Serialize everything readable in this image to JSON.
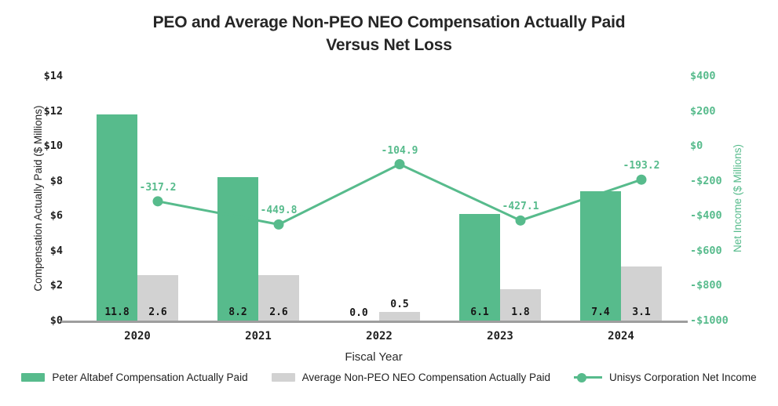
{
  "header": {
    "title_line1": "PEO and Average Non-PEO NEO Compensation Actually Paid",
    "title_line2": "Versus Net Loss"
  },
  "colors": {
    "green": "#57BB8C",
    "gray_bar": "#D2D2D2",
    "axis_line": "#9E9E9E",
    "text_dark": "#1F1F1F"
  },
  "chart_data": {
    "type": "bar",
    "title": "PEO and Average Non-PEO NEO Compensation Actually Paid Versus Net Loss",
    "categories": [
      "2020",
      "2021",
      "2022",
      "2023",
      "2024"
    ],
    "xlabel": "Fiscal Year",
    "grid": false,
    "legend_position": "bottom",
    "left_axis": {
      "label": "Compensation Actually Paid ($ Millions)",
      "ticks": [
        "$14",
        "$12",
        "$10",
        "$8",
        "$6",
        "$4",
        "$2",
        "$0"
      ],
      "range": [
        0,
        14
      ]
    },
    "right_axis": {
      "label": "Net Income ($ Millions)",
      "ticks": [
        "$400",
        "$200",
        "$0",
        "-$200",
        "-$400",
        "-$600",
        "-$800",
        "-$1000"
      ],
      "range": [
        -1000,
        400
      ]
    },
    "series": [
      {
        "key": "peo",
        "name": "Peter Altabef Compensation Actually Paid",
        "type": "bar",
        "color": "#57BB8C",
        "values": [
          11.8,
          8.2,
          0.0,
          6.1,
          7.4
        ],
        "labels": [
          "11.8",
          "8.2",
          "0.0",
          "6.1",
          "7.4"
        ]
      },
      {
        "key": "neo",
        "name": "Average Non-PEO NEO Compensation Actually Paid",
        "type": "bar",
        "color": "#D2D2D2",
        "values": [
          2.6,
          2.6,
          0.5,
          1.8,
          3.1
        ],
        "labels": [
          "2.6",
          "2.6",
          "0.5",
          "1.8",
          "3.1"
        ]
      },
      {
        "key": "net_income",
        "name": "Unisys Corporation Net Income",
        "type": "line",
        "color": "#57BB8C",
        "values": [
          -317.2,
          -449.8,
          -104.9,
          -427.1,
          -193.2
        ],
        "labels": [
          "-317.2",
          "-449.8",
          "-104.9",
          "-427.1",
          "-193.2"
        ]
      }
    ]
  }
}
